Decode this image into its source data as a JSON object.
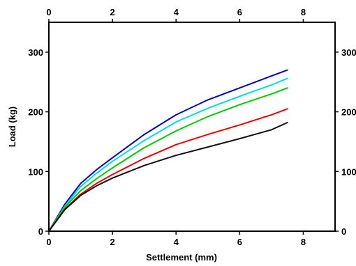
{
  "chart_data": {
    "type": "line",
    "title": "",
    "xlabel": "Settlement (mm)",
    "ylabel": "Load (kg)",
    "xlim": [
      0,
      9
    ],
    "ylim": [
      0,
      350
    ],
    "x_ticks": [
      0,
      2,
      4,
      6,
      8
    ],
    "y_ticks": [
      0,
      100,
      200,
      300
    ],
    "x_tick_labels": [
      "0",
      "2",
      "4",
      "6",
      "8"
    ],
    "y_tick_labels": [
      "0",
      "100",
      "200",
      "300"
    ],
    "grid": false,
    "legend": "none",
    "x": [
      0,
      0.5,
      1,
      1.5,
      2,
      3,
      4,
      5,
      6,
      7,
      7.5
    ],
    "series": [
      {
        "color": "#0000cc",
        "values": [
          0,
          45,
          80,
          103,
          123,
          162,
          195,
          220,
          240,
          260,
          270
        ]
      },
      {
        "color": "#00dddd",
        "values": [
          0,
          42,
          75,
          97,
          117,
          152,
          183,
          206,
          226,
          245,
          256
        ]
      },
      {
        "color": "#00cc00",
        "values": [
          0,
          40,
          68,
          88,
          106,
          140,
          168,
          192,
          212,
          230,
          240
        ]
      },
      {
        "color": "#ee0000",
        "values": [
          0,
          37,
          62,
          80,
          95,
          122,
          145,
          162,
          178,
          195,
          205
        ]
      },
      {
        "color": "#111111",
        "values": [
          0,
          36,
          60,
          76,
          89,
          110,
          127,
          141,
          155,
          170,
          182
        ]
      }
    ]
  }
}
